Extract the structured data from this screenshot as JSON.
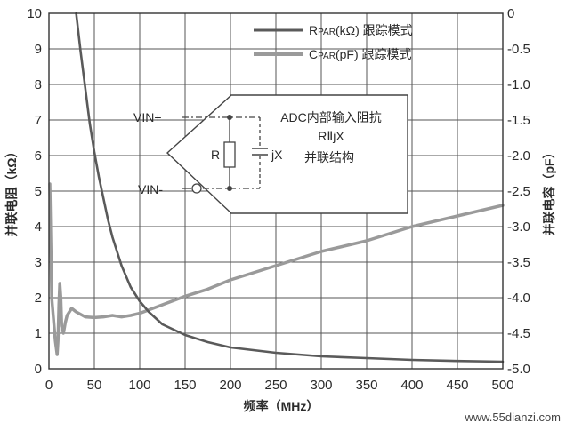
{
  "chart_data": {
    "type": "line",
    "xlabel": "频率（MHz）",
    "ylabel_left": "并联电阻（kΩ）",
    "ylabel_right": "并联电容（pF）",
    "xlim": [
      0,
      500
    ],
    "ylim_left": [
      0,
      10
    ],
    "ylim_right": [
      -5.0,
      0
    ],
    "x_ticks": [
      "0",
      "50",
      "100",
      "150",
      "200",
      "250",
      "300",
      "350",
      "400",
      "450",
      "500"
    ],
    "y_left_ticks": [
      "0",
      "1",
      "2",
      "3",
      "4",
      "5",
      "6",
      "7",
      "8",
      "9",
      "10"
    ],
    "y_right_ticks": [
      "-5.0",
      "-4.5",
      "-4.0",
      "-3.5",
      "-3.0",
      "-2.5",
      "-2.0",
      "-1.5",
      "-1.0",
      "-0.5",
      "0"
    ],
    "grid": true,
    "legend_position": "top-right",
    "series": [
      {
        "name": "RPAR(kΩ) 跟踪模式",
        "legend_main": "R",
        "legend_sub": "PAR",
        "legend_rest": "(kΩ) 跟踪模式",
        "axis": "left",
        "color": "#5a5a5a",
        "x": [
          30,
          35,
          40,
          45,
          50,
          55,
          60,
          65,
          70,
          75,
          80,
          90,
          100,
          110,
          125,
          150,
          175,
          200,
          250,
          300,
          350,
          400,
          450,
          500
        ],
        "y": [
          10.0,
          8.9,
          7.9,
          6.9,
          6.1,
          5.4,
          4.8,
          4.2,
          3.7,
          3.3,
          2.9,
          2.3,
          1.9,
          1.6,
          1.25,
          0.95,
          0.75,
          0.6,
          0.45,
          0.35,
          0.3,
          0.25,
          0.22,
          0.2
        ]
      },
      {
        "name": "CPAR(pF) 跟踪模式",
        "legend_main": "C",
        "legend_sub": "PAR",
        "legend_rest": "(pF) 跟踪模式",
        "axis": "right",
        "color": "#9a9a9a",
        "x": [
          1,
          3,
          5,
          7,
          9,
          10,
          11,
          12,
          13,
          14,
          16,
          18,
          20,
          25,
          30,
          40,
          50,
          60,
          70,
          80,
          90,
          100,
          125,
          150,
          175,
          200,
          250,
          300,
          350,
          400,
          450,
          500
        ],
        "y": [
          -2.4,
          -4.0,
          -4.3,
          -4.6,
          -4.8,
          -4.6,
          -4.1,
          -3.8,
          -4.0,
          -4.4,
          -4.5,
          -4.35,
          -4.25,
          -4.15,
          -4.2,
          -4.27,
          -4.28,
          -4.27,
          -4.25,
          -4.27,
          -4.25,
          -4.22,
          -4.1,
          -3.98,
          -3.88,
          -3.75,
          -3.55,
          -3.35,
          -3.2,
          -3.0,
          -2.85,
          -2.7
        ]
      }
    ],
    "inset": {
      "vin_plus": "VIN+",
      "vin_minus": "VIN-",
      "r_label": "R",
      "jx_label": "jX",
      "line1": "ADC内部输入阻抗",
      "line2": "RⅡjX",
      "line3": "并联结构"
    }
  },
  "watermark": "www.55dianzi.com"
}
